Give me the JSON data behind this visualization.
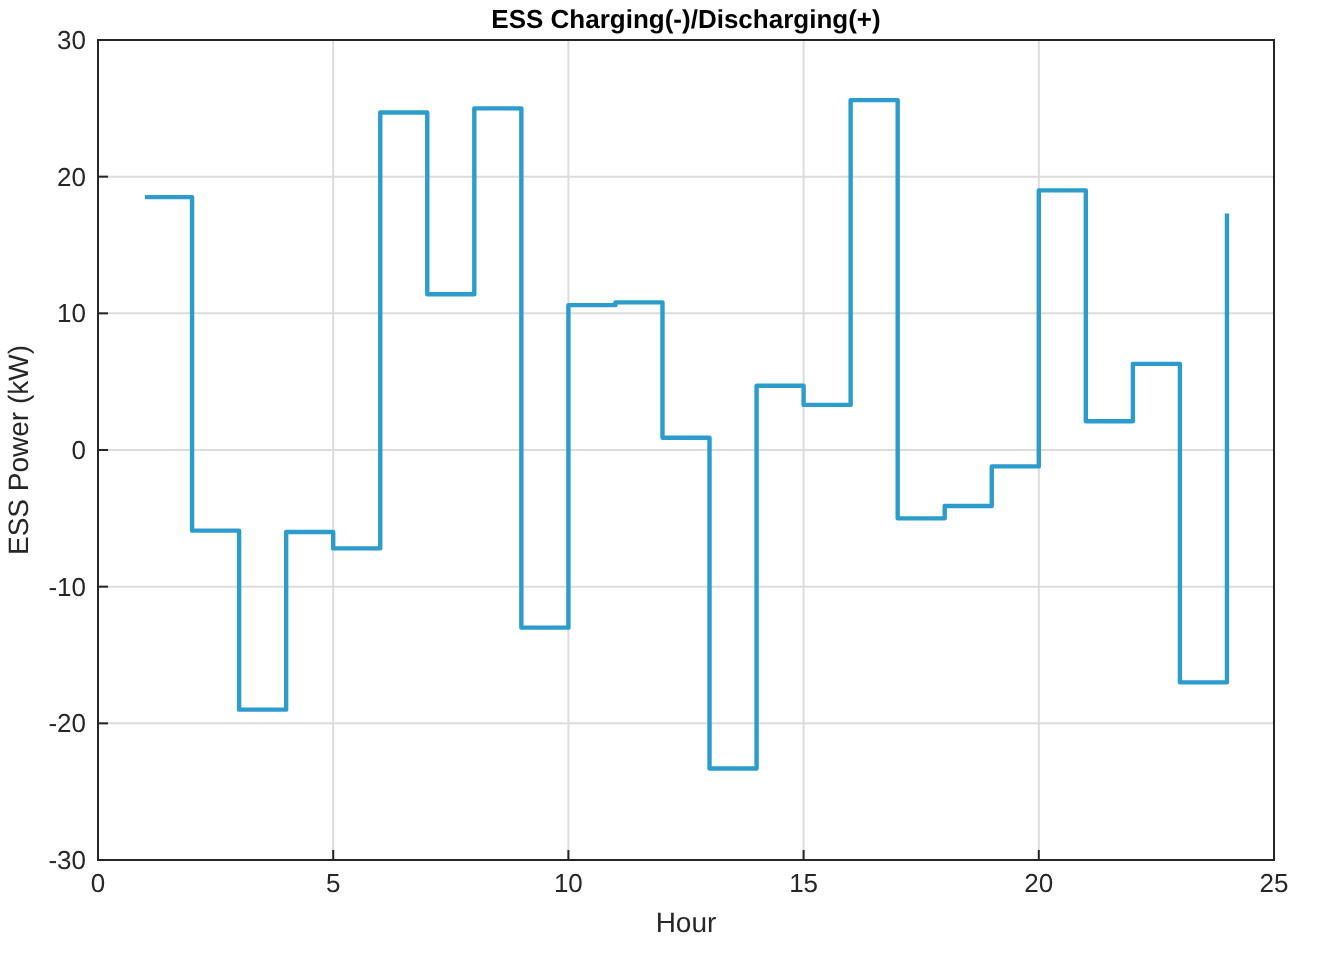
{
  "chart_data": {
    "type": "step",
    "title": "ESS Charging(-)/Discharging(+)",
    "xlabel": "Hour",
    "ylabel": "ESS Power (kW)",
    "x": [
      1,
      2,
      3,
      4,
      5,
      6,
      7,
      8,
      9,
      10,
      11,
      12,
      13,
      14,
      15,
      16,
      17,
      18,
      19,
      20,
      21,
      22,
      23,
      24
    ],
    "series": [
      {
        "color": "#2b9ccb",
        "values": [
          18.5,
          -5.9,
          -19,
          -6,
          -7.2,
          24.7,
          11.4,
          25,
          -13,
          10.6,
          10.8,
          0.9,
          -23.3,
          4.7,
          3.3,
          25.6,
          -5,
          -4.1,
          -1.2,
          19,
          2.1,
          6.3,
          -17,
          17.3
        ]
      }
    ],
    "xlim": [
      0,
      25
    ],
    "xticks": [
      0,
      5,
      10,
      15,
      20,
      25
    ],
    "ylim": [
      -30,
      30
    ],
    "yticks": [
      -30,
      -20,
      -10,
      0,
      10,
      20,
      30
    ],
    "grid": true
  }
}
